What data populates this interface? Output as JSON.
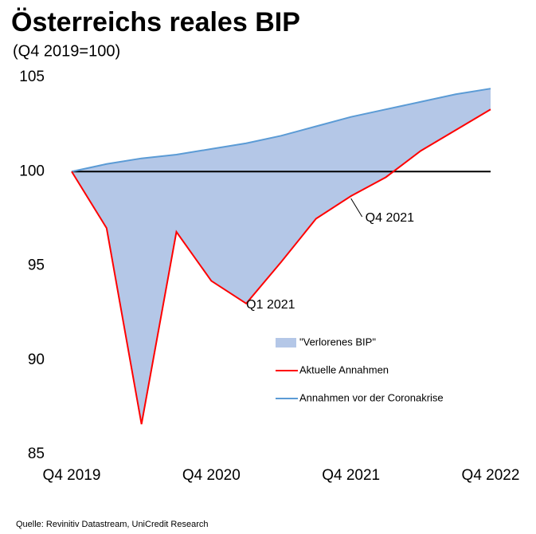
{
  "chart_data": {
    "type": "line",
    "title": "Österreichs reales BIP",
    "subtitle": "(Q4 2019=100)",
    "categories": [
      "Q4 2019",
      null,
      null,
      null,
      "Q4 2020",
      null,
      null,
      null,
      "Q4 2021",
      null,
      null,
      null,
      "Q4 2022"
    ],
    "series": [
      {
        "name": "Aktuelle Annahmen",
        "color": "#ff0000",
        "values": [
          100,
          97.0,
          86.6,
          96.8,
          94.2,
          93.0,
          95.2,
          97.5,
          98.7,
          99.7,
          101.1,
          102.2,
          103.3
        ]
      },
      {
        "name": "Annahmen vor der Coronakrise",
        "color": "#5b9bd5",
        "values": [
          100,
          100.4,
          100.7,
          100.9,
          101.2,
          101.5,
          101.9,
          102.4,
          102.9,
          103.3,
          103.7,
          104.1,
          104.4
        ]
      }
    ],
    "area": {
      "name": "\"Verlorenes BIP\"",
      "color": "#b4c7e7"
    },
    "hline": 100,
    "ylim": [
      85,
      105
    ],
    "yticks": [
      85,
      90,
      95,
      100,
      105
    ],
    "annotations": [
      {
        "text": "Q4 2021",
        "index": 8
      },
      {
        "text": "Q1 2021",
        "index": 5
      }
    ],
    "source": "Quelle: Revinitiv Datastream, UniCredit Research"
  }
}
